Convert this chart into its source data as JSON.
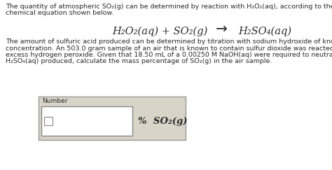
{
  "bg_color": "#ffffff",
  "text_color": "#2a2a2a",
  "line1": "The quantity of atmospheric SO₂(g) can be determined by reaction with H₂O₂(aq), according to the balanced",
  "line2": "chemical equation shown below.",
  "equation_left": "H₂O₂(aq) + SO₂(g)",
  "equation_arrow": "→",
  "equation_right": "H₂SO₄(aq)",
  "para_line1": "The amount of sulfuric acid produced can be determined by titration with sodium hydroxide of known",
  "para_line2": "concentration. An 503.0 gram sample of an air that is known to contain sulfur dioxide was reacted with",
  "para_line3": "excess hydrogen peroxide. Given that 18.50 mL of a 0.00250 M NaOH(aq) were required to neutralize the",
  "para_line4": "H₂SO₄(aq) produced, calculate the mass percentage of SO₂(g) in the air sample.",
  "box_label": "Number",
  "units_label": "%  SO₂(g)",
  "fontsize_body": 6.8,
  "fontsize_eq": 10.5,
  "outer_box_color": "#d8d4c8",
  "outer_box_edge": "#999999",
  "inner_box_edge": "#888888"
}
